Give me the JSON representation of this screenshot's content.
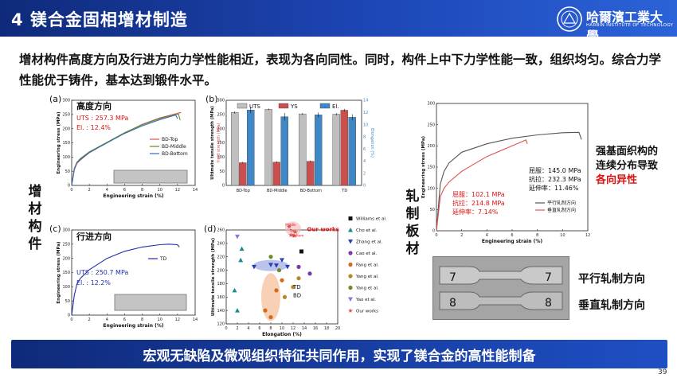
{
  "header": {
    "title": "4 镁合金固相增材制造",
    "logo_cn": "哈爾濱工業大學",
    "logo_en": "HARBIN INSTITUTE OF TECHNOLOGY"
  },
  "intro": "增材构件高度方向及行进方向力学性能相近，表现为各向同性。同时，构件上中下力学性能一致，组织均匀。综合力学性能优于铸件，基本达到锻件水平。",
  "side_labels": {
    "am": "增材构件",
    "rolled": "轧制板材"
  },
  "chart_data": [
    {
      "id": "a",
      "type": "line",
      "panel_label": "(a)",
      "inner_title": "高度方向",
      "uts_text": "UTS : 257.3 MPa",
      "el_text": "El. : 12.4%",
      "xlabel": "Engineering strain (%)",
      "ylabel": "Engineering stress (MPa)",
      "xlim": [
        0,
        14
      ],
      "ylim": [
        0,
        300
      ],
      "xticks": [
        "0",
        "2",
        "4",
        "6",
        "8",
        "10",
        "12",
        "14"
      ],
      "yticks": [
        "0",
        "50",
        "100",
        "150",
        "200",
        "250",
        "300"
      ],
      "series": [
        {
          "name": "BD-Top",
          "color": "#d9534f",
          "x": [
            0,
            0.3,
            0.6,
            1,
            2,
            4,
            6,
            8,
            10,
            12.4
          ],
          "y": [
            0,
            55,
            78,
            90,
            115,
            150,
            185,
            215,
            238,
            257
          ]
        },
        {
          "name": "BD-Middle",
          "color": "#5a8f2a",
          "x": [
            0,
            0.3,
            0.6,
            1,
            2,
            4,
            6,
            8,
            10,
            12.1,
            12.3
          ],
          "y": [
            0,
            60,
            82,
            95,
            118,
            152,
            186,
            214,
            236,
            252,
            230
          ]
        },
        {
          "name": "BD-Bottom",
          "color": "#3b6bb5",
          "x": [
            0,
            0.3,
            0.6,
            1,
            2,
            4,
            6,
            8,
            10,
            11.8,
            12
          ],
          "y": [
            0,
            58,
            80,
            92,
            116,
            150,
            183,
            210,
            232,
            248,
            235
          ]
        }
      ]
    },
    {
      "id": "b",
      "type": "bar",
      "panel_label": "(b)",
      "xlabel": "",
      "ylabel": "Ultimate tensile strength (MPa)",
      "ylabel2": "Yield strength (MPa)",
      "ylabel3": "Elongation (%)",
      "categories": [
        "BD-Top",
        "BD-Middle",
        "BD-Bottom",
        "TD"
      ],
      "ylim": [
        0,
        300
      ],
      "yticks": [
        "0",
        "50",
        "100",
        "150",
        "200",
        "250",
        "300"
      ],
      "y2ticks": [
        "0",
        "2",
        "4",
        "6",
        "8",
        "10",
        "12",
        "14"
      ],
      "series": [
        {
          "name": "UTS",
          "color": "#bfbfbf",
          "values": [
            257,
            268,
            252,
            251
          ],
          "err": [
            4,
            3,
            3,
            4
          ]
        },
        {
          "name": "YS",
          "color": "#c9504f",
          "values": [
            80,
            82,
            85,
            265
          ],
          "err": [
            3,
            3,
            3,
            5
          ]
        },
        {
          "name": "El.",
          "color": "#3f88c5",
          "values": [
            12.4,
            11.3,
            11.6,
            11.2
          ],
          "err": [
            0.5,
            0.6,
            0.4,
            0.5
          ]
        }
      ]
    },
    {
      "id": "c",
      "type": "line",
      "panel_label": "(c)",
      "inner_title": "行进方向",
      "uts_text": "UTS : 250.7 MPa",
      "el_text": "El. : 12.2%",
      "xlabel": "Engineering strain (%)",
      "ylabel": "Engineering stress (MPa)",
      "xlim": [
        0,
        14
      ],
      "ylim": [
        0,
        300
      ],
      "xticks": [
        "0",
        "2",
        "4",
        "6",
        "8",
        "10",
        "12",
        "14"
      ],
      "yticks": [
        "0",
        "50",
        "100",
        "150",
        "200",
        "250",
        "300"
      ],
      "series": [
        {
          "name": "TD",
          "color": "#1f2fa8",
          "x": [
            0,
            0.3,
            0.6,
            1,
            2,
            4,
            6,
            8,
            10,
            11,
            12,
            12.2
          ],
          "y": [
            0,
            70,
            110,
            130,
            160,
            200,
            225,
            240,
            248,
            250,
            248,
            240
          ]
        }
      ]
    },
    {
      "id": "d",
      "type": "scatter",
      "panel_label": "(d)",
      "xlabel": "Elongation (%)",
      "ylabel": "Ultimate tensile strength (MPa)",
      "xlim": [
        0,
        20
      ],
      "ylim": [
        120,
        260
      ],
      "xticks": [
        "0",
        "2",
        "4",
        "6",
        "8",
        "10",
        "12",
        "14",
        "16",
        "18",
        "20"
      ],
      "yticks": [
        "120",
        "140",
        "160",
        "180",
        "200",
        "220",
        "240",
        "260"
      ],
      "legend": [
        "Williams et al.",
        "Cho et al.",
        "Zhang et al.",
        "Cao et al.",
        "Fang et al.",
        "Yang et al.",
        "Yang et al.",
        "Yao et al.",
        "Our works"
      ],
      "annotations": [
        "Our works",
        "Middle",
        "Top",
        "Bottom",
        "TD",
        "BD"
      ],
      "series": [
        {
          "name": "Williams et al.",
          "color": "#111111",
          "marker": "square",
          "points": [
            [
              13.5,
              228
            ]
          ]
        },
        {
          "name": "Cho et al.",
          "color": "#1b8a8a",
          "marker": "triangle",
          "points": [
            [
              1.5,
              170
            ],
            [
              2,
              140
            ],
            [
              2.6,
              215
            ],
            [
              2.8,
              232
            ]
          ]
        },
        {
          "name": "Zhang et al.",
          "color": "#2a3fb0",
          "marker": "tri-down",
          "points": [
            [
              5,
              205
            ],
            [
              8,
              208
            ],
            [
              9,
              207
            ],
            [
              11,
              205
            ],
            [
              10,
              215
            ]
          ]
        },
        {
          "name": "Cao et al.",
          "color": "#7a3aa8",
          "marker": "circle",
          "points": [
            [
              13,
              205
            ],
            [
              15,
              195
            ]
          ]
        },
        {
          "name": "Fang et al.",
          "color": "#d46a1b",
          "marker": "circle",
          "points": [
            [
              7,
              140
            ],
            [
              8,
              130
            ],
            [
              9,
              170
            ],
            [
              10,
              185
            ]
          ]
        },
        {
          "name": "Yang et al.",
          "color": "#b28a2a",
          "marker": "circle",
          "points": [
            [
              10.5,
              160
            ],
            [
              12,
              175
            ],
            [
              13,
              188
            ]
          ]
        },
        {
          "name": "Yang et al.",
          "color": "#6b8a2a",
          "marker": "circle",
          "points": [
            [
              8,
              220
            ],
            [
              9.5,
              200
            ]
          ]
        },
        {
          "name": "Yao et al.",
          "color": "#7f7fd0",
          "marker": "tri-down",
          "points": [
            [
              2,
              250
            ]
          ]
        },
        {
          "name": "Our works",
          "color": "#d9534f",
          "marker": "star",
          "points": [
            [
              11.3,
              268
            ],
            [
              12.4,
              257
            ],
            [
              11.6,
              252
            ],
            [
              12.2,
              251
            ]
          ]
        }
      ]
    },
    {
      "id": "rolled",
      "type": "line",
      "panel_label": "",
      "xlabel": "Engineering strain (%)",
      "ylabel": "Engineering stress (MPa)",
      "xlim": [
        0,
        12
      ],
      "ylim": [
        0,
        300
      ],
      "xticks": [
        "0",
        "2",
        "4",
        "6",
        "8",
        "10",
        "12"
      ],
      "yticks": [
        "0",
        "50",
        "100",
        "150",
        "200",
        "250",
        "300"
      ],
      "annot_a": [
        "屈服：145.0 MPa",
        "抗拉：232.3 MPa",
        "延伸率：11.46%"
      ],
      "annot_b": [
        "屈服：102.1 MPa",
        "抗拉：214.8 MPa",
        "延伸率：7.14%"
      ],
      "series": [
        {
          "name": "平行轧制方向",
          "color": "#555555",
          "x": [
            0,
            0.3,
            0.6,
            1,
            2,
            4,
            6,
            8,
            10,
            11.3,
            11.5
          ],
          "y": [
            0,
            110,
            140,
            160,
            185,
            205,
            218,
            226,
            231,
            232,
            215
          ]
        },
        {
          "name": "垂直轧制方向",
          "color": "#d9534f",
          "x": [
            0,
            0.3,
            0.6,
            1,
            2,
            4,
            6,
            7.1,
            7.2
          ],
          "y": [
            0,
            80,
            100,
            115,
            140,
            175,
            200,
            214,
            205
          ]
        }
      ]
    }
  ],
  "photo_labels": {
    "parallel": "平行轧制方向",
    "perpendicular": "垂直轧制方向",
    "mark_a": "7",
    "mark_b": "8"
  },
  "note": {
    "line1": "强基面织构的",
    "line2": "连续分布导致",
    "line3": "各向异性"
  },
  "footer": "宏观无缺陷及微观组织特征共同作用，实现了镁合金的高性能制备",
  "page_number": "39"
}
